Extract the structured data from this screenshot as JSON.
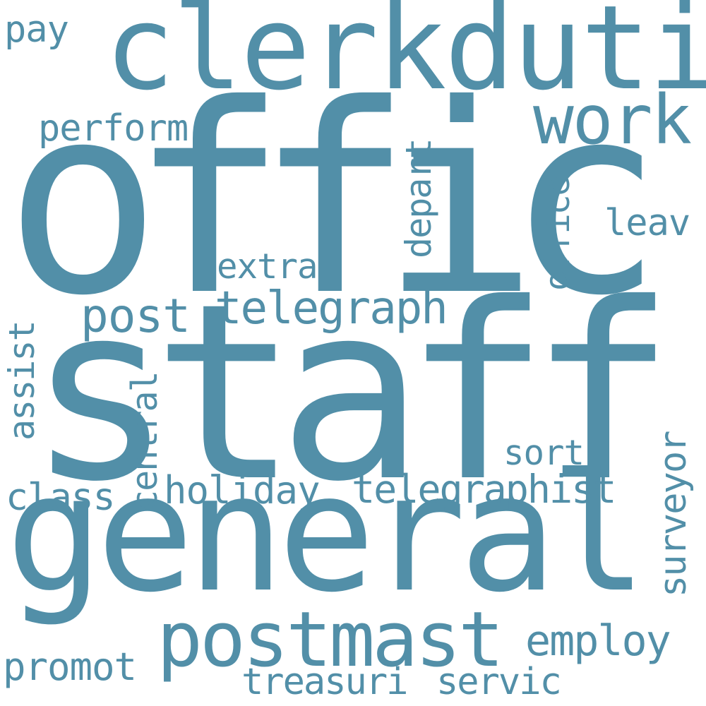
{
  "color": "#528fa8",
  "background": "#ffffff",
  "words": {
    "offic": "offic",
    "staff": "staff",
    "general": "general",
    "clerkduti": "clerkduti",
    "postmast": "postmast",
    "work": "work",
    "telegraph": "telegraph",
    "post": "post",
    "telegraphist": "telegraphist",
    "holiday": "holiday",
    "employ": "employ",
    "class": "class",
    "promot": "promot",
    "treasuri": "treasuri",
    "servic": "servic",
    "perform": "perform",
    "extra": "extra",
    "leav": "leav",
    "sort": "sort",
    "pay": "pay",
    "depart": "depart",
    "office": "office",
    "assist": "assist",
    "central": "central",
    "surveyor": "surveyor"
  }
}
